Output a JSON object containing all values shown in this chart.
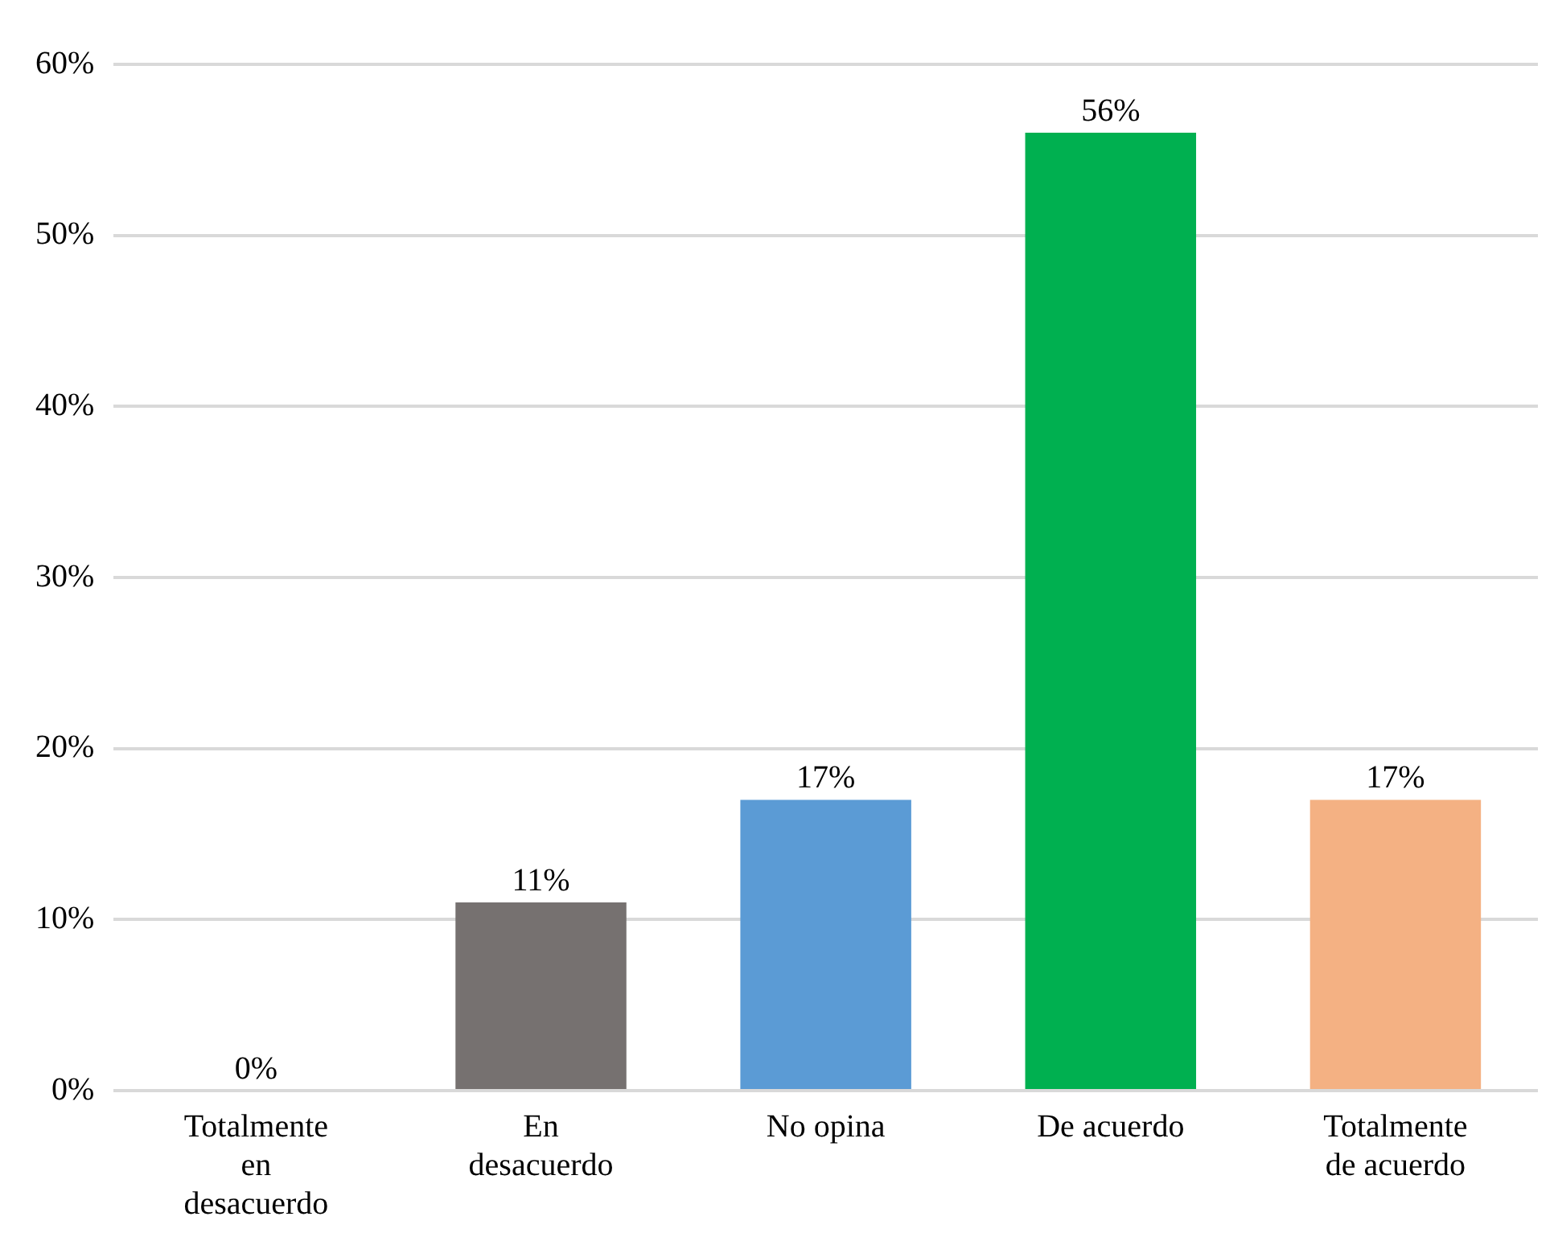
{
  "chart_data": {
    "type": "bar",
    "categories": [
      "Totalmente en desacuerdo",
      "En desacuerdo",
      "No opina",
      "De acuerdo",
      "Totalmente de acuerdo"
    ],
    "values": [
      0,
      11,
      17,
      56,
      17
    ],
    "colors": [
      "#c0a84a",
      "#767170",
      "#5b9bd5",
      "#00b050",
      "#f4b183"
    ],
    "value_labels": [
      "0%",
      "11%",
      "17%",
      "56%",
      "17%"
    ],
    "ylim": [
      0,
      60
    ],
    "yticks": [
      {
        "value": 0,
        "label": "0%"
      },
      {
        "value": 10,
        "label": "10%"
      },
      {
        "value": 20,
        "label": "20%"
      },
      {
        "value": 30,
        "label": "30%"
      },
      {
        "value": 40,
        "label": "40%"
      },
      {
        "value": 50,
        "label": "50%"
      },
      {
        "value": 60,
        "label": "60%"
      }
    ],
    "grid": "y",
    "legend": false
  }
}
